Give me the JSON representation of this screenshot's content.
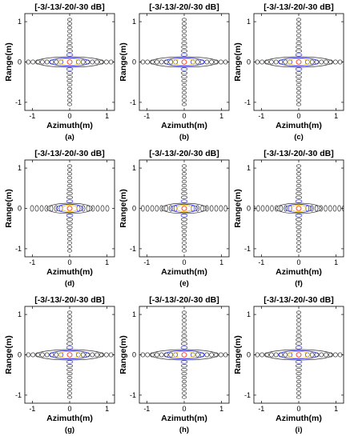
{
  "figure": {
    "description_none": ""
  },
  "chart_data": [
    {
      "panel_label": "(a)",
      "type": "contour",
      "title": "[-3/-13/-20/-30 dB]",
      "xlabel": "Azimuth(m)",
      "ylabel": "Range(m)",
      "xlim": [
        -1.2,
        1.2
      ],
      "ylim": [
        -1.2,
        1.2
      ],
      "xticks": [
        "-1",
        "0",
        "1"
      ],
      "yticks": [
        "1",
        "0",
        "-1"
      ],
      "contour_levels_db": [
        -3,
        -13,
        -20,
        -30
      ],
      "level_colors": [
        "#ff3b1f",
        "#f2c200",
        "#3030e0",
        "#333333"
      ],
      "range_lobes": 10,
      "azimuth_lobes": 8,
      "azimuth_extent_m": 1.0,
      "sidelobe_orientation": "azimuth-elongated"
    },
    {
      "panel_label": "(b)",
      "type": "contour",
      "title": "[-3/-13/-20/-30 dB]",
      "xlabel": "Azimuth(m)",
      "ylabel": "Range(m)",
      "xlim": [
        -1.2,
        1.2
      ],
      "ylim": [
        -1.2,
        1.2
      ],
      "xticks": [
        "-1",
        "0",
        "1"
      ],
      "yticks": [
        "1",
        "0",
        "-1"
      ],
      "contour_levels_db": [
        -3,
        -13,
        -20,
        -30
      ],
      "level_colors": [
        "#ff3b1f",
        "#f2c200",
        "#3030e0",
        "#333333"
      ],
      "range_lobes": 10,
      "azimuth_lobes": 8,
      "azimuth_extent_m": 1.0,
      "sidelobe_orientation": "azimuth-elongated"
    },
    {
      "panel_label": "(c)",
      "type": "contour",
      "title": "[-3/-13/-20/-30 dB]",
      "xlabel": "Azimuth(m)",
      "ylabel": "Range(m)",
      "xlim": [
        -1.2,
        1.2
      ],
      "ylim": [
        -1.2,
        1.2
      ],
      "xticks": [
        "-1",
        "0",
        "1"
      ],
      "yticks": [
        "1",
        "0",
        "-1"
      ],
      "contour_levels_db": [
        -3,
        -13,
        -20,
        -30
      ],
      "level_colors": [
        "#ff3b1f",
        "#f2c200",
        "#3030e0",
        "#333333"
      ],
      "range_lobes": 10,
      "azimuth_lobes": 8,
      "azimuth_extent_m": 1.0,
      "sidelobe_orientation": "azimuth-elongated"
    },
    {
      "panel_label": "(d)",
      "type": "contour",
      "title": "[-3/-13/-20/-30 dB]",
      "xlabel": "Azimuth(m)",
      "ylabel": "Range(m)",
      "xlim": [
        -1.2,
        1.2
      ],
      "ylim": [
        -1.2,
        1.2
      ],
      "xticks": [
        "-1",
        "0",
        "1"
      ],
      "yticks": [
        "1",
        "0",
        "-1"
      ],
      "contour_levels_db": [
        -3,
        -13,
        -20,
        -30
      ],
      "level_colors": [
        "#ff3b1f",
        "#f2c200",
        "#3030e0",
        "#333333"
      ],
      "range_lobes": 10,
      "azimuth_lobes": 7,
      "azimuth_extent_m": 0.9,
      "sidelobe_orientation": "range-elongated"
    },
    {
      "panel_label": "(e)",
      "type": "contour",
      "title": "[-3/-13/-20/-30 dB]",
      "xlabel": "Azimuth(m)",
      "ylabel": "Range(m)",
      "xlim": [
        -1.2,
        1.2
      ],
      "ylim": [
        -1.2,
        1.2
      ],
      "xticks": [
        "-1",
        "0",
        "1"
      ],
      "yticks": [
        "1",
        "0",
        "-1"
      ],
      "contour_levels_db": [
        -3,
        -13,
        -20,
        -30
      ],
      "level_colors": [
        "#ff3b1f",
        "#f2c200",
        "#3030e0",
        "#333333"
      ],
      "range_lobes": 10,
      "azimuth_lobes": 8,
      "azimuth_extent_m": 1.0,
      "sidelobe_orientation": "range-elongated"
    },
    {
      "panel_label": "(f)",
      "type": "contour",
      "title": "[-3/-13/-20/-30 dB]",
      "xlabel": "Azimuth(m)",
      "ylabel": "Range(m)",
      "xlim": [
        -1.2,
        1.2
      ],
      "ylim": [
        -1.2,
        1.2
      ],
      "xticks": [
        "-1",
        "0",
        "1"
      ],
      "yticks": [
        "1",
        "0",
        "-1"
      ],
      "contour_levels_db": [
        -3,
        -13,
        -20,
        -30
      ],
      "level_colors": [
        "#ff3b1f",
        "#f2c200",
        "#3030e0",
        "#333333"
      ],
      "range_lobes": 10,
      "azimuth_lobes": 9,
      "azimuth_extent_m": 1.1,
      "sidelobe_orientation": "range-elongated"
    },
    {
      "panel_label": "(g)",
      "type": "contour",
      "title": "[-3/-13/-20/-30 dB]",
      "xlabel": "Azimuth(m)",
      "ylabel": "Range(m)",
      "xlim": [
        -1.2,
        1.2
      ],
      "ylim": [
        -1.2,
        1.2
      ],
      "xticks": [
        "-1",
        "0",
        "1"
      ],
      "yticks": [
        "1",
        "0",
        "-1"
      ],
      "contour_levels_db": [
        -3,
        -13,
        -20,
        -30
      ],
      "level_colors": [
        "#ff3b1f",
        "#f2c200",
        "#3030e0",
        "#333333"
      ],
      "range_lobes": 10,
      "azimuth_lobes": 8,
      "azimuth_extent_m": 1.0,
      "sidelobe_orientation": "azimuth-elongated"
    },
    {
      "panel_label": "(h)",
      "type": "contour",
      "title": "[-3/-13/-20/-30 dB]",
      "xlabel": "Azimuth(m)",
      "ylabel": "Range(m)",
      "xlim": [
        -1.2,
        1.2
      ],
      "ylim": [
        -1.2,
        1.2
      ],
      "xticks": [
        "-1",
        "0",
        "1"
      ],
      "yticks": [
        "1",
        "0",
        "-1"
      ],
      "contour_levels_db": [
        -3,
        -13,
        -20,
        -30
      ],
      "level_colors": [
        "#ff3b1f",
        "#f2c200",
        "#3030e0",
        "#333333"
      ],
      "range_lobes": 10,
      "azimuth_lobes": 8,
      "azimuth_extent_m": 1.0,
      "sidelobe_orientation": "azimuth-elongated"
    },
    {
      "panel_label": "(i)",
      "type": "contour",
      "title": "[-3/-13/-20/-30 dB]",
      "xlabel": "Azimuth(m)",
      "ylabel": "Range(m)",
      "xlim": [
        -1.2,
        1.2
      ],
      "ylim": [
        -1.2,
        1.2
      ],
      "xticks": [
        "-1",
        "0",
        "1"
      ],
      "yticks": [
        "1",
        "0",
        "-1"
      ],
      "contour_levels_db": [
        -3,
        -13,
        -20,
        -30
      ],
      "level_colors": [
        "#ff3b1f",
        "#f2c200",
        "#3030e0",
        "#333333"
      ],
      "range_lobes": 10,
      "azimuth_lobes": 8,
      "azimuth_extent_m": 1.0,
      "sidelobe_orientation": "azimuth-elongated"
    }
  ]
}
